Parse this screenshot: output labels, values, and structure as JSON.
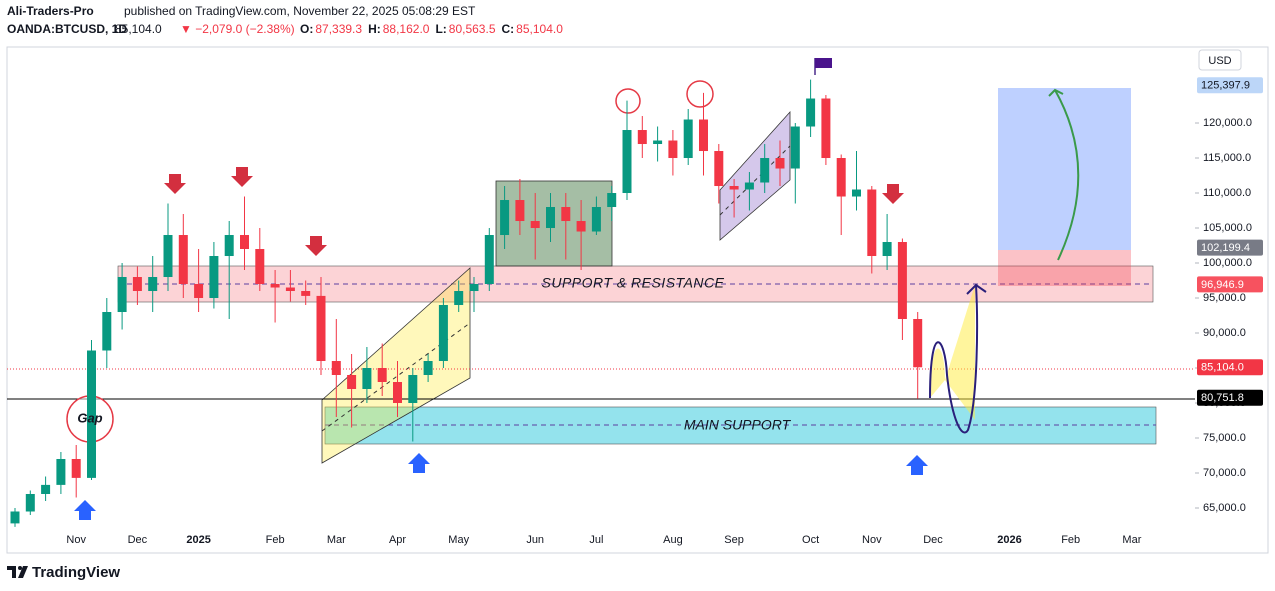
{
  "header": {
    "author": "Ali-Traders-Pro",
    "published": "published on TradingView.com, November 22, 2025 05:08:29 EST",
    "symbol": "OANDA:BTCUSD, 1D",
    "price": "85,104.0",
    "change": "▼ −2,079.0 (−2.38%)",
    "ohlc": [
      {
        "label": "O:",
        "value": "87,339.3"
      },
      {
        "label": "H:",
        "value": "88,162.0"
      },
      {
        "label": "L:",
        "value": "80,563.5"
      },
      {
        "label": "C:",
        "value": "85,104.0"
      }
    ]
  },
  "chart_data": {
    "type": "candlestick",
    "currency": "USD",
    "up_color": "#089981",
    "down_color": "#f23645",
    "categories": [
      null,
      null,
      null,
      null,
      "Nov",
      null,
      null,
      null,
      "Dec",
      null,
      null,
      null,
      "2025",
      null,
      null,
      null,
      null,
      "Feb",
      null,
      null,
      null,
      "Mar",
      null,
      null,
      null,
      "Apr",
      null,
      null,
      null,
      "May",
      null,
      null,
      null,
      null,
      "Jun",
      null,
      null,
      null,
      "Jul",
      null,
      null,
      null,
      null,
      "Aug",
      null,
      null,
      null,
      "Sep",
      null,
      null,
      null,
      null,
      "Oct",
      null,
      null,
      null,
      "Nov",
      null,
      null,
      null,
      "Dec",
      null,
      null,
      null,
      null,
      "2026",
      null,
      null,
      null,
      "Feb",
      null,
      null,
      null,
      "Mar",
      null,
      null
    ],
    "open": [
      62800,
      64500,
      67000,
      68300,
      72000,
      69300,
      87500,
      93000,
      98000,
      96000,
      98000,
      104000,
      97000,
      95000,
      101000,
      104000,
      102000,
      97000,
      96500,
      96000,
      95300,
      86000,
      84000,
      82000,
      85000,
      83000,
      80000,
      84000,
      86000,
      94000,
      96000,
      97000,
      104000,
      109000,
      106000,
      105000,
      108000,
      106000,
      104500,
      108000,
      110000,
      119000,
      117000,
      117500,
      115000,
      120500,
      116000,
      111000,
      110500,
      111500,
      115000,
      113500,
      119500,
      123500,
      115000,
      109500,
      110500,
      101000,
      103000,
      92000,
      null,
      null,
      null,
      null,
      null,
      null,
      null,
      null,
      null,
      null,
      null,
      null,
      null,
      null,
      null,
      null
    ],
    "high": [
      65000,
      67500,
      69500,
      73000,
      74000,
      89000,
      95000,
      100000,
      99500,
      101000,
      108500,
      107000,
      102000,
      103000,
      106000,
      109500,
      105000,
      99000,
      99000,
      97500,
      98000,
      92000,
      87000,
      88000,
      88500,
      86000,
      85000,
      87000,
      95000,
      97500,
      98000,
      105000,
      111000,
      112000,
      110000,
      110000,
      110000,
      109000,
      109500,
      111000,
      123200,
      121000,
      119500,
      119000,
      122000,
      124300,
      117000,
      112000,
      113000,
      117000,
      117500,
      120000,
      126200,
      124000,
      115500,
      116000,
      111000,
      107000,
      103500,
      93000,
      null,
      null,
      null,
      null,
      null,
      null,
      null,
      null,
      null,
      null,
      null,
      null,
      null,
      null,
      null,
      null
    ],
    "low": [
      62300,
      64000,
      66000,
      67000,
      66500,
      69000,
      85000,
      90500,
      94000,
      93000,
      96000,
      95000,
      93000,
      93500,
      92000,
      99000,
      96000,
      91500,
      94500,
      94000,
      84000,
      78000,
      76500,
      80000,
      81000,
      78000,
      74500,
      83000,
      85000,
      93000,
      93000,
      96000,
      102000,
      104000,
      100500,
      103000,
      100500,
      99000,
      104000,
      106000,
      109000,
      115000,
      114500,
      112500,
      114000,
      112500,
      108500,
      106500,
      107500,
      110000,
      111000,
      108500,
      118000,
      114000,
      104000,
      107500,
      98500,
      99000,
      89000,
      80600,
      null,
      null,
      null,
      null,
      null,
      null,
      null,
      null,
      null,
      null,
      null,
      null,
      null,
      null,
      null,
      null
    ],
    "close": [
      64500,
      67000,
      68300,
      72000,
      69300,
      87500,
      93000,
      98000,
      96000,
      98000,
      104000,
      97000,
      95000,
      101000,
      104000,
      102000,
      97000,
      96500,
      96000,
      95300,
      86000,
      84000,
      82000,
      85000,
      83000,
      80000,
      84000,
      86000,
      94000,
      96000,
      97000,
      104000,
      109000,
      106000,
      105000,
      108000,
      106000,
      104500,
      108000,
      110000,
      119000,
      117000,
      117500,
      115000,
      120500,
      116000,
      111000,
      110500,
      111500,
      115000,
      113500,
      119500,
      123500,
      115000,
      109500,
      110500,
      101000,
      103000,
      92000,
      85104,
      null,
      null,
      null,
      null,
      null,
      null,
      null,
      null,
      null,
      null,
      null,
      null,
      null,
      null,
      null,
      null
    ],
    "ylim": [
      58570,
      130860
    ],
    "yticks": [
      {
        "value": 65000,
        "label": "65,000.0"
      },
      {
        "value": 70000,
        "label": "70,000.0"
      },
      {
        "value": 75000,
        "label": "75,000.0"
      },
      {
        "value": 80000,
        "label": "80,000.0"
      },
      {
        "value": 85000,
        "label": "85,000.0"
      },
      {
        "value": 90000,
        "label": "90,000.0"
      },
      {
        "value": 95000,
        "label": "95,000.0"
      },
      {
        "value": 100000,
        "label": "100,000.0"
      },
      {
        "value": 105000,
        "label": "105,000.0"
      },
      {
        "value": 110000,
        "label": "110,000.0"
      },
      {
        "value": 115000,
        "label": "115,000.0"
      },
      {
        "value": 120000,
        "label": "120,000.0"
      }
    ],
    "price_labels": [
      {
        "value": 125397.9,
        "label": "125,397.9",
        "color": "#bcd6f8",
        "text_color": "#131722"
      },
      {
        "value": 102199.4,
        "label": "102,199.4",
        "color": "#787b86",
        "text_color": "#ffffff"
      },
      {
        "value": 96946.9,
        "label": "96,946.9",
        "color": "#f7525f",
        "text_color": "#ffffff"
      },
      {
        "value": 85104.0,
        "label": "85,104.0",
        "color": "#f23645",
        "text_color": "#ffffff"
      },
      {
        "value": 80751.8,
        "label": "80,751.8",
        "color": "#000000",
        "text_color": "#ffffff"
      }
    ],
    "annotations": {
      "gap": "Gap",
      "resistance": "SUPPORT & RESISTANCE",
      "support": "MAIN SUPPORT"
    }
  },
  "footer": {
    "brand": "TradingView"
  }
}
